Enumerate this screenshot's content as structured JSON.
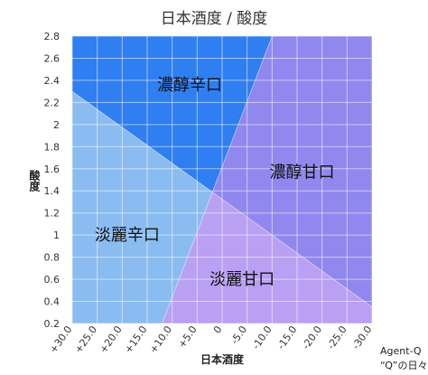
{
  "chart_data": {
    "type": "area",
    "title": "日本酒度 / 酸度",
    "xlabel": "日本酒度",
    "ylabel": "酸度",
    "xlim": [
      30,
      -30
    ],
    "ylim": [
      0.2,
      2.8
    ],
    "x_ticks": [
      "+30.0",
      "+25.0",
      "+20.0",
      "+15.0",
      "+10.0",
      "+5.0",
      "0",
      "-5.0",
      "-10.0",
      "-15.0",
      "-20.0",
      "-25.0",
      "-30.0"
    ],
    "x_tick_values": [
      30,
      25,
      20,
      15,
      10,
      5,
      0,
      -5,
      -10,
      -15,
      -20,
      -25,
      -30
    ],
    "y_ticks": [
      "0.2",
      "0.4",
      "0.6",
      "0.8",
      "1",
      "1.2",
      "1.4",
      "1.6",
      "1.8",
      "2",
      "2.2",
      "2.4",
      "2.6",
      "2.8"
    ],
    "y_tick_values": [
      0.2,
      0.4,
      0.6,
      0.8,
      1.0,
      1.2,
      1.4,
      1.6,
      1.8,
      2.0,
      2.2,
      2.4,
      2.6,
      2.8
    ],
    "grid": true,
    "boundary_lines": [
      {
        "from": [
          30,
          2.3
        ],
        "to": [
          -30,
          0.35
        ]
      },
      {
        "from": [
          -10,
          2.8
        ],
        "to": [
          12,
          0.2
        ]
      }
    ],
    "regions": [
      {
        "label": "濃醇辛口",
        "color": "#2f7ef2",
        "label_at": [
          6.5,
          2.36
        ]
      },
      {
        "label": "濃醇甘口",
        "color": "#9088ee",
        "label_at": [
          -16.0,
          1.57
        ]
      },
      {
        "label": "淡麗辛口",
        "color": "#8bbcf1",
        "label_at": [
          19.0,
          1.0
        ]
      },
      {
        "label": "淡麗甘口",
        "color": "#b9a0f3",
        "label_at": [
          -4.0,
          0.6
        ]
      }
    ]
  },
  "credit": {
    "line1": "Agent-Q",
    "line2": "“Q”の日々"
  }
}
